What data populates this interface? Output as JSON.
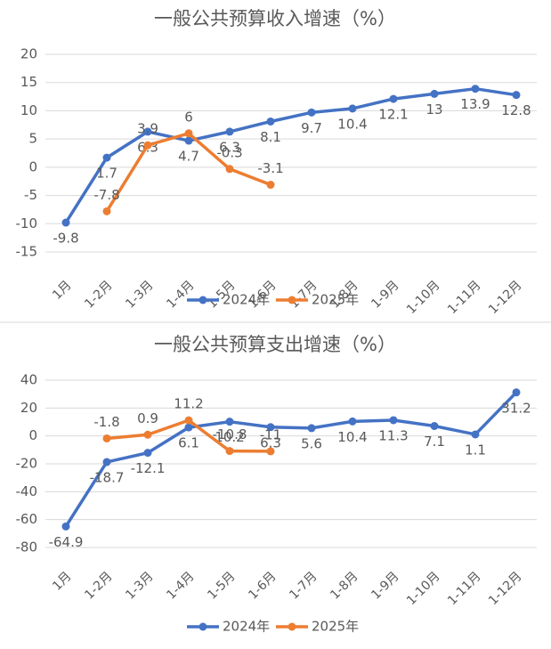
{
  "chart_data": [
    {
      "type": "line",
      "title": "一般公共预算收入增速（%）",
      "categories": [
        "1月",
        "1-2月",
        "1-3月",
        "1-4月",
        "1-5月",
        "1-6月",
        "1-7月",
        "1-8月",
        "1-9月",
        "1-10月",
        "1-11月",
        "1-12月"
      ],
      "series": [
        {
          "name": "2024年",
          "color": "#4472c4",
          "values": [
            -9.8,
            1.7,
            6.3,
            4.7,
            6.3,
            8.1,
            9.7,
            10.4,
            12.1,
            13,
            13.9,
            12.8
          ]
        },
        {
          "name": "2025年",
          "color": "#ed7d31",
          "values": [
            null,
            -7.8,
            3.9,
            6,
            -0.3,
            -3.1,
            null,
            null,
            null,
            null,
            null,
            null
          ]
        }
      ],
      "ylim": [
        -15,
        20
      ],
      "yticks": [
        -15,
        -10,
        -5,
        0,
        5,
        10,
        15,
        20
      ],
      "grid": true,
      "legend": "bottom"
    },
    {
      "type": "line",
      "title": "一般公共预算支出增速（%）",
      "categories": [
        "1月",
        "1-2月",
        "1-3月",
        "1-4月",
        "1-5月",
        "1-6月",
        "1-7月",
        "1-8月",
        "1-9月",
        "1-10月",
        "1-11月",
        "1-12月"
      ],
      "series": [
        {
          "name": "2024年",
          "color": "#4472c4",
          "values": [
            -64.9,
            -18.7,
            -12.1,
            6.1,
            10.2,
            6.3,
            5.6,
            10.4,
            11.3,
            7.1,
            1.1,
            31.2
          ]
        },
        {
          "name": "2025年",
          "color": "#ed7d31",
          "values": [
            null,
            -1.8,
            0.9,
            11.2,
            -10.8,
            -11,
            null,
            null,
            null,
            null,
            null,
            null
          ]
        }
      ],
      "ylim": [
        -80,
        40
      ],
      "yticks": [
        -80,
        -60,
        -40,
        -20,
        0,
        20,
        40
      ],
      "grid": true,
      "legend": "bottom"
    }
  ]
}
